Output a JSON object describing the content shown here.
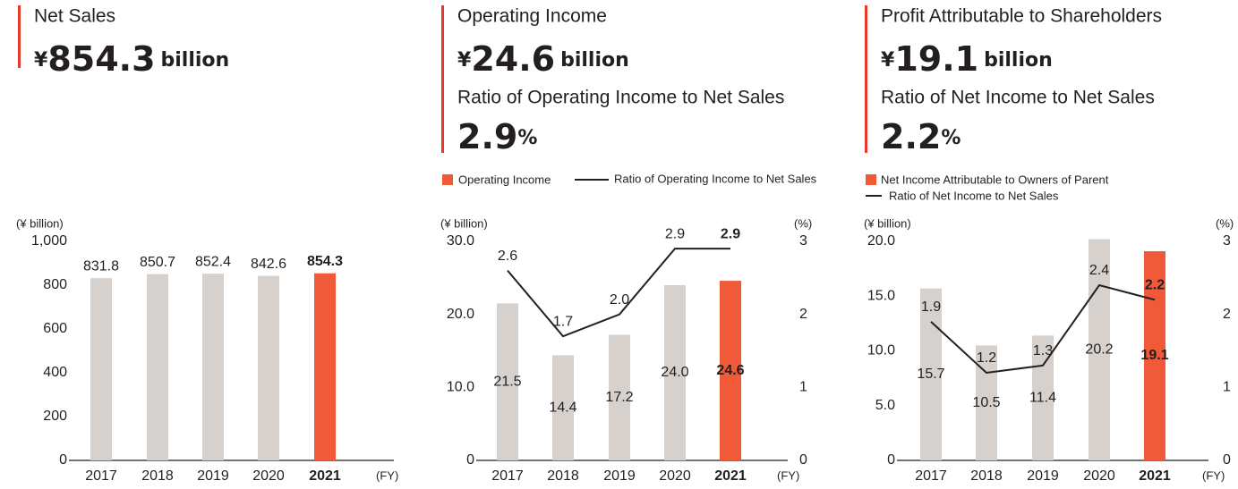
{
  "chart_data": [
    {
      "type": "bar",
      "title": "Net Sales",
      "headline_prefix": "¥",
      "headline": "854.3",
      "headline_unit": "billion",
      "y_label": "(¥ billion)",
      "x_label": "(FY)",
      "categories": [
        "2017",
        "2018",
        "2019",
        "2020",
        "2021"
      ],
      "values": [
        831.8,
        850.7,
        852.4,
        842.6,
        854.3
      ],
      "colors": [
        "#d6d1cd",
        "#d6d1cd",
        "#d6d1cd",
        "#d6d1cd",
        "#f05a38"
      ],
      "ylim": [
        0,
        1000
      ],
      "yticks": [
        0,
        200,
        400,
        600,
        800,
        {
          "value": 1000,
          "label": "1,000"
        }
      ],
      "grid": false
    },
    {
      "type": "combo",
      "title": "Operating Income",
      "headline_prefix": "¥",
      "headline": "24.6",
      "headline_unit": "billion",
      "subtitle": "Ratio of Operating Income to Net Sales",
      "subheadline": "2.9",
      "subheadline_unit": "%",
      "y_label": "(¥ billion)",
      "y2_label": "(%)",
      "x_label": "(FY)",
      "categories": [
        "2017",
        "2018",
        "2019",
        "2020",
        "2021"
      ],
      "series": [
        {
          "name": "Operating Income",
          "type": "bar",
          "color": "#f05a38",
          "colors": [
            "#d6d1cd",
            "#d6d1cd",
            "#d6d1cd",
            "#d6d1cd",
            "#f05a38"
          ],
          "values": [
            21.5,
            14.4,
            17.2,
            24.0,
            24.6
          ],
          "value_labels": [
            "21.5",
            "14.4",
            "17.2",
            "24.0",
            "24.6"
          ]
        },
        {
          "name": "Ratio of Operating Income to Net Sales",
          "type": "line",
          "color": "#231f20",
          "axis": "y2",
          "values": [
            2.6,
            1.7,
            2.0,
            2.9,
            2.9
          ],
          "value_labels": [
            "2.6",
            "1.7",
            "2.0",
            "2.9",
            "2.9"
          ]
        }
      ],
      "ylim": [
        0,
        30
      ],
      "yticks": [
        0,
        {
          "value": 10,
          "label": "10.0"
        },
        {
          "value": 20,
          "label": "20.0"
        },
        {
          "value": 30,
          "label": "30.0"
        }
      ],
      "y2lim": [
        0,
        3
      ],
      "y2ticks": [
        0,
        1,
        2,
        3
      ],
      "grid": false
    },
    {
      "type": "combo",
      "title": "Profit Attributable to Shareholders",
      "headline_prefix": "¥",
      "headline": "19.1",
      "headline_unit": "billion",
      "subtitle": "Ratio of Net Income to Net Sales",
      "subheadline": "2.2",
      "subheadline_unit": "%",
      "y_label": "(¥ billion)",
      "y2_label": "(%)",
      "x_label": "(FY)",
      "categories": [
        "2017",
        "2018",
        "2019",
        "2020",
        "2021"
      ],
      "series": [
        {
          "name": "Net Income Attributable to Owners of Parent",
          "type": "bar",
          "color": "#f05a38",
          "colors": [
            "#d6d1cd",
            "#d6d1cd",
            "#d6d1cd",
            "#d6d1cd",
            "#f05a38"
          ],
          "values": [
            15.7,
            10.5,
            11.4,
            20.2,
            19.1
          ]
        },
        {
          "name": "Ratio of Net Income to Net Sales",
          "type": "line",
          "color": "#231f20",
          "axis": "y2",
          "values": [
            1.9,
            1.2,
            1.3,
            2.4,
            2.2
          ]
        }
      ],
      "ylim": [
        0,
        20
      ],
      "yticks": [
        0,
        {
          "value": 5,
          "label": "5.0"
        },
        {
          "value": 10,
          "label": "10.0"
        },
        {
          "value": 15,
          "label": "15.0"
        },
        {
          "value": 20,
          "label": "20.0"
        }
      ],
      "y2lim": [
        0,
        3
      ],
      "y2ticks": [
        0,
        1,
        2,
        3
      ],
      "grid": false
    }
  ]
}
